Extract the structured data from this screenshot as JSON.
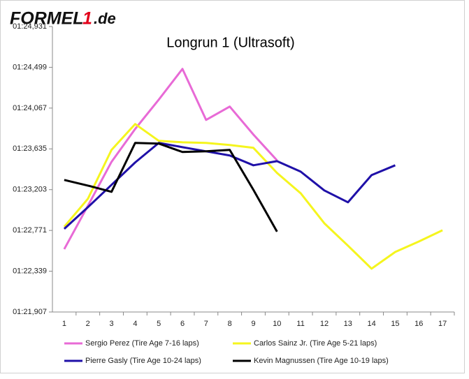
{
  "logo": [
    "FORMEL",
    "1",
    ".de"
  ],
  "chart_data": {
    "type": "line",
    "title": "Longrun 1 (Ultrasoft)",
    "categories": [
      "1",
      "2",
      "3",
      "4",
      "5",
      "6",
      "7",
      "8",
      "9",
      "10",
      "11",
      "12",
      "13",
      "14",
      "15",
      "16",
      "17"
    ],
    "ylim": [
      81.907,
      84.931
    ],
    "yticks": [
      {
        "value": 81.907,
        "label": "01:21,907"
      },
      {
        "value": 82.339,
        "label": "01:22,339"
      },
      {
        "value": 82.771,
        "label": "01:22,771"
      },
      {
        "value": 83.203,
        "label": "01:23,203"
      },
      {
        "value": 83.635,
        "label": "01:23,635"
      },
      {
        "value": 84.067,
        "label": "01:24,067"
      },
      {
        "value": 84.499,
        "label": "01:24,499"
      },
      {
        "value": 84.931,
        "label": "01:24,931"
      }
    ],
    "grid": false,
    "legend": "bottom",
    "series": [
      {
        "name": "Sergio Perez (Tire Age 7-16 laps)",
        "color": "#e86ad6",
        "values": [
          82.573,
          83.032,
          83.498,
          83.846,
          84.157,
          84.482,
          83.942,
          84.083,
          83.787,
          83.513,
          null,
          null,
          null,
          null,
          null,
          null,
          null
        ]
      },
      {
        "name": "Carlos Sainz Jr. (Tire Age 5-21 laps)",
        "color": "#f5f51e",
        "values": [
          82.81,
          83.106,
          83.624,
          83.898,
          83.72,
          83.705,
          83.698,
          83.676,
          83.646,
          83.38,
          83.165,
          82.847,
          82.61,
          82.366,
          82.543,
          82.654,
          82.773
        ]
      },
      {
        "name": "Pierre Gasly (Tire Age 10-24 laps)",
        "color": "#1f10a8",
        "values": [
          82.788,
          83.017,
          83.254,
          83.491,
          83.698,
          83.653,
          83.609,
          83.565,
          83.461,
          83.505,
          83.394,
          83.195,
          83.069,
          83.357,
          83.461,
          null,
          null
        ]
      },
      {
        "name": "Kevin Magnussen (Tire Age 10-19 laps)",
        "color": "#000000",
        "values": [
          83.306,
          83.246,
          83.18,
          83.698,
          83.691,
          83.602,
          83.609,
          83.624,
          83.202,
          82.758,
          null,
          null,
          null,
          null,
          null,
          null,
          null
        ]
      }
    ]
  }
}
